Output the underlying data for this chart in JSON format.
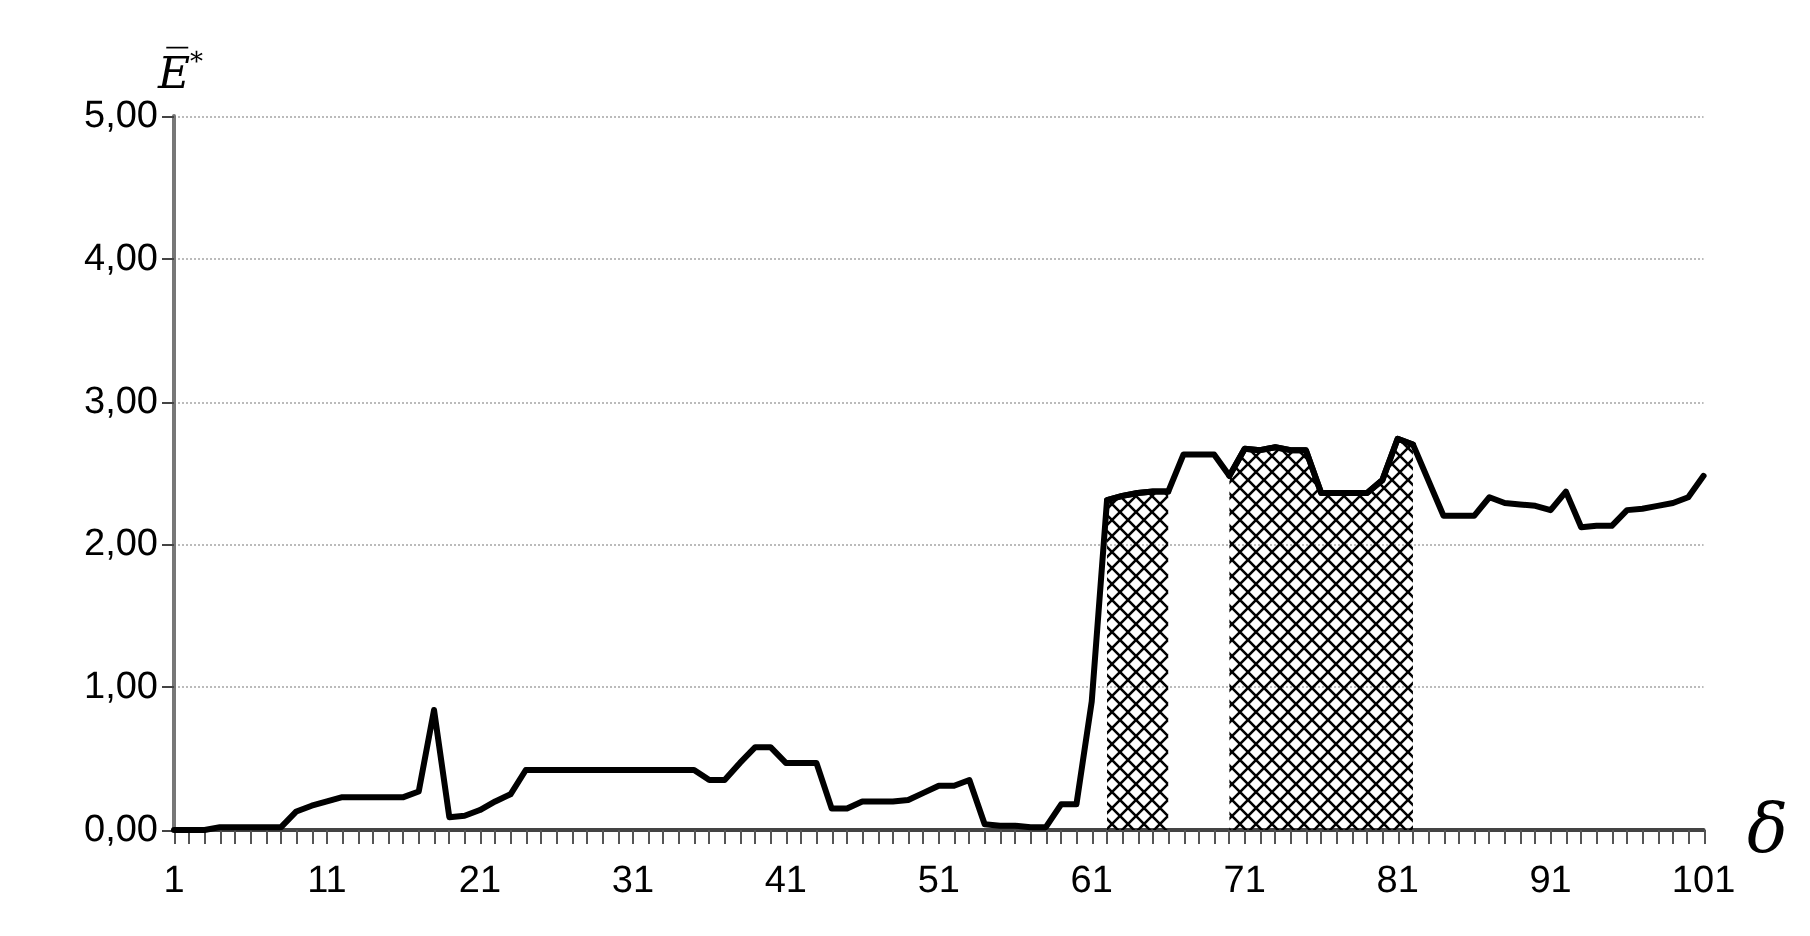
{
  "chart_data": {
    "type": "line",
    "xlabel": "δ",
    "ylabel": "E̅$^{*}$",
    "categories": [
      "1",
      null,
      null,
      null,
      null,
      null,
      null,
      null,
      null,
      null,
      "11",
      null,
      null,
      null,
      null,
      null,
      null,
      null,
      null,
      null,
      "21",
      null,
      null,
      null,
      null,
      null,
      null,
      null,
      null,
      null,
      "31",
      null,
      null,
      null,
      null,
      null,
      null,
      null,
      null,
      null,
      "41",
      null,
      null,
      null,
      null,
      null,
      null,
      null,
      null,
      null,
      "51",
      null,
      null,
      null,
      null,
      null,
      null,
      null,
      null,
      null,
      "61",
      null,
      null,
      null,
      null,
      null,
      null,
      null,
      null,
      null,
      "71",
      null,
      null,
      null,
      null,
      null,
      null,
      null,
      null,
      null,
      "81",
      null,
      null,
      null,
      null,
      null,
      null,
      null,
      null,
      null,
      "91",
      null,
      null,
      null,
      null,
      null,
      null,
      null,
      null,
      null,
      "101"
    ],
    "series": [
      {
        "type": "area",
        "color": "#000000",
        "values": [
          null,
          null,
          null,
          null,
          null,
          null,
          null,
          null,
          null,
          null,
          null,
          null,
          null,
          null,
          null,
          null,
          null,
          null,
          null,
          null,
          null,
          null,
          null,
          null,
          null,
          null,
          null,
          null,
          null,
          null,
          null,
          null,
          null,
          null,
          null,
          null,
          null,
          null,
          null,
          null,
          null,
          null,
          null,
          null,
          null,
          null,
          null,
          null,
          null,
          null,
          null,
          null,
          null,
          null,
          null,
          null,
          null,
          null,
          null,
          null,
          null,
          2.31,
          2.34,
          2.36,
          2.37,
          2.37,
          null,
          null,
          null,
          2.48,
          2.67,
          2.66,
          2.68,
          2.66,
          2.66,
          2.36,
          2.36,
          2.36,
          2.36,
          2.45,
          2.74,
          2.7,
          null,
          null,
          null,
          null,
          null,
          null,
          null,
          null,
          null,
          null,
          null,
          null,
          null,
          null,
          null,
          null,
          null,
          null,
          null
        ]
      },
      {
        "color": "#000000",
        "values": [
          0,
          0,
          0,
          0.02,
          0.02,
          0.02,
          0.02,
          0.02,
          0.13,
          0.17,
          0.2,
          0.23,
          0.23,
          0.23,
          0.23,
          0.23,
          0.27,
          0.84,
          0.09,
          0.1,
          0.14,
          0.2,
          0.25,
          0.42,
          0.42,
          0.42,
          0.42,
          0.42,
          0.42,
          0.42,
          0.42,
          0.42,
          0.42,
          0.42,
          0.42,
          0.35,
          0.35,
          0.47,
          0.58,
          0.58,
          0.47,
          0.47,
          0.47,
          0.15,
          0.15,
          0.2,
          0.2,
          0.2,
          0.21,
          0.26,
          0.31,
          0.31,
          0.35,
          0.04,
          0.03,
          0.03,
          0.02,
          0.02,
          0.18,
          0.18,
          0.9,
          2.31,
          2.34,
          2.36,
          2.37,
          2.37,
          2.63,
          2.63,
          2.63,
          2.48,
          2.67,
          2.66,
          2.68,
          2.66,
          2.66,
          2.36,
          2.36,
          2.36,
          2.36,
          2.45,
          2.74,
          2.7,
          2.45,
          2.2,
          2.2,
          2.2,
          2.33,
          2.29,
          2.28,
          2.27,
          2.24,
          2.37,
          2.12,
          2.13,
          2.13,
          2.24,
          2.25,
          2.27,
          2.29,
          2.33,
          2.48
        ]
      }
    ],
    "ylim": [
      0,
      5
    ],
    "yticks": [
      {
        "value": 0,
        "label": "0,00"
      },
      {
        "value": 1,
        "label": "1,00"
      },
      {
        "value": 2,
        "label": "2,00"
      },
      {
        "value": 3,
        "label": "3,00"
      },
      {
        "value": 4,
        "label": "4,00"
      },
      {
        "value": 5,
        "label": "5,00"
      }
    ],
    "grid": "y",
    "marker": "none",
    "line_style": "solid"
  }
}
